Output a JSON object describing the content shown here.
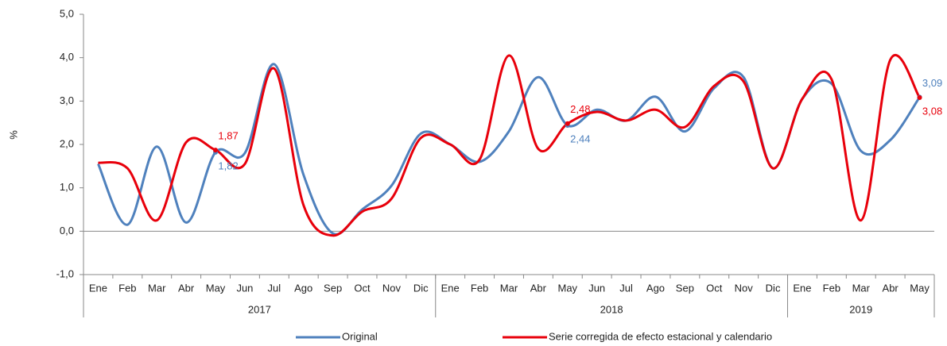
{
  "chart_data": {
    "type": "line",
    "y_label": "%",
    "categories": [
      "Ene",
      "Feb",
      "Mar",
      "Abr",
      "May",
      "Jun",
      "Jul",
      "Ago",
      "Sep",
      "Oct",
      "Nov",
      "Dic",
      "Ene",
      "Feb",
      "Mar",
      "Abr",
      "May",
      "Jun",
      "Jul",
      "Ago",
      "Sep",
      "Oct",
      "Nov",
      "Dic",
      "Ene",
      "Feb",
      "Mar",
      "Abr",
      "May"
    ],
    "groups": [
      {
        "name": "2017",
        "count": 12
      },
      {
        "name": "2018",
        "count": 12
      },
      {
        "name": "2019",
        "count": 5
      }
    ],
    "series": [
      {
        "name": "Original",
        "color": "#4f81bd",
        "values": [
          1.55,
          0.15,
          1.95,
          0.2,
          1.82,
          1.8,
          3.85,
          1.3,
          -0.05,
          0.5,
          1.05,
          2.25,
          2.0,
          1.6,
          2.3,
          3.55,
          2.44,
          2.8,
          2.55,
          3.1,
          2.3,
          3.3,
          3.55,
          1.45,
          3.05,
          3.4,
          1.85,
          2.1,
          3.09
        ],
        "value_labels": [
          null,
          null,
          null,
          null,
          "1,82",
          null,
          null,
          null,
          null,
          null,
          null,
          null,
          null,
          null,
          null,
          null,
          "2,44",
          null,
          null,
          null,
          null,
          null,
          null,
          null,
          null,
          null,
          null,
          null,
          "3,09"
        ]
      },
      {
        "name": "Serie corregida de efecto estacional y calendario",
        "color": "#e8000b",
        "values": [
          1.58,
          1.45,
          0.25,
          2.05,
          1.87,
          1.55,
          3.75,
          0.6,
          -0.1,
          0.45,
          0.75,
          2.15,
          2.0,
          1.65,
          4.05,
          1.9,
          2.48,
          2.75,
          2.55,
          2.8,
          2.4,
          3.35,
          3.45,
          1.45,
          3.05,
          3.5,
          0.25,
          3.95,
          3.08
        ],
        "value_labels": [
          null,
          null,
          null,
          null,
          "1,87",
          null,
          null,
          null,
          null,
          null,
          null,
          null,
          null,
          null,
          null,
          null,
          "2,48",
          null,
          null,
          null,
          null,
          null,
          null,
          null,
          null,
          null,
          null,
          null,
          "3,08"
        ]
      }
    ],
    "ylim": [
      -1,
      5
    ],
    "yticks": [
      {
        "value": -1,
        "label": "-1,0"
      },
      {
        "value": 0,
        "label": "0,0"
      },
      {
        "value": 1,
        "label": "1,0"
      },
      {
        "value": 2,
        "label": "2,0"
      },
      {
        "value": 3,
        "label": "3,0"
      },
      {
        "value": 4,
        "label": "4,0"
      },
      {
        "value": 5,
        "label": "5,0"
      }
    ],
    "legend": "bottom"
  }
}
